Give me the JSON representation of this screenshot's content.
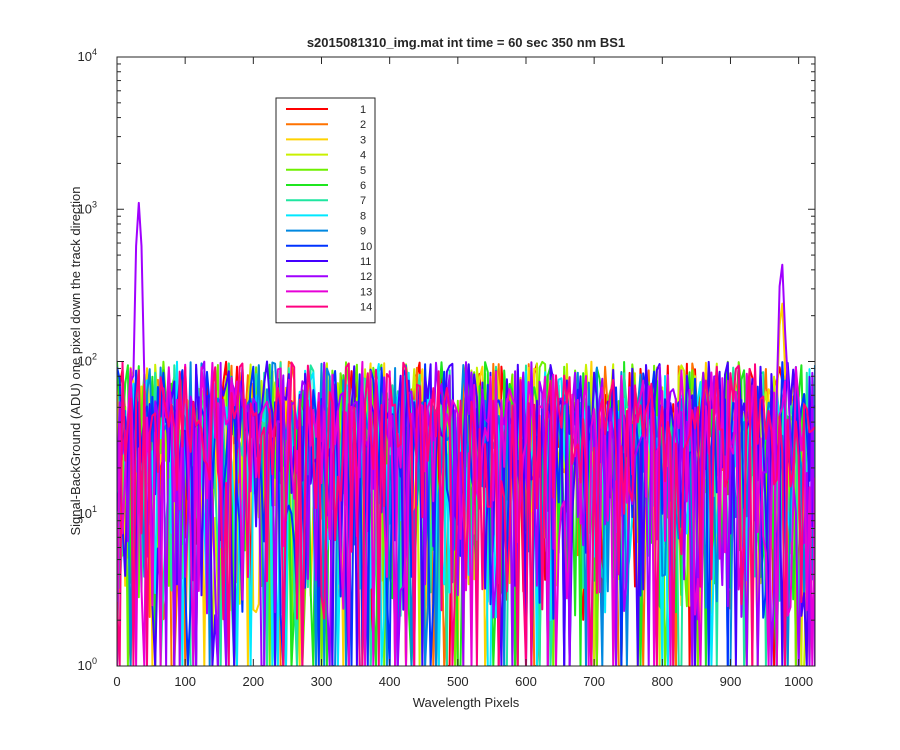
{
  "chart_data": {
    "type": "line",
    "title": "s2015081310_img.mat int time = 60 sec  350 nm BS1",
    "xlabel": "Wavelength Pixels",
    "ylabel": "Signal-BackGround (ADU) one pixel down the track direction",
    "xlim": [
      0,
      1024
    ],
    "ylim": [
      1,
      10000
    ],
    "yscale": "log",
    "grid": false,
    "legend_position": "top-left",
    "x_ticks": [
      0,
      100,
      200,
      300,
      400,
      500,
      600,
      700,
      800,
      900,
      1000
    ],
    "x_tick_labels": [
      "0",
      "100",
      "200",
      "300",
      "400",
      "500",
      "600",
      "700",
      "800",
      "900",
      "1000"
    ],
    "y_ticks": [
      1,
      10,
      100,
      1000,
      10000
    ],
    "y_tick_base": "10",
    "y_tick_exponents": [
      "0",
      "1",
      "2",
      "3",
      "4"
    ],
    "sample_step": 4,
    "noise_level_typical": 30,
    "noise_level_max": 100,
    "peaks": [
      {
        "x": 32,
        "y": 1100,
        "series": "12"
      },
      {
        "x": 975,
        "y": 450,
        "series": "12"
      },
      {
        "x": 975,
        "y": 250,
        "series": "3"
      }
    ],
    "series": [
      {
        "name": "1",
        "color": "#ff0000"
      },
      {
        "name": "2",
        "color": "#ff7200"
      },
      {
        "name": "3",
        "color": "#ffd200"
      },
      {
        "name": "4",
        "color": "#c9f000"
      },
      {
        "name": "5",
        "color": "#6ef000"
      },
      {
        "name": "6",
        "color": "#1fe61f"
      },
      {
        "name": "7",
        "color": "#1fe6a0"
      },
      {
        "name": "8",
        "color": "#00e8ff"
      },
      {
        "name": "9",
        "color": "#0088e0"
      },
      {
        "name": "10",
        "color": "#0033ff"
      },
      {
        "name": "11",
        "color": "#4400ff"
      },
      {
        "name": "12",
        "color": "#a000ff"
      },
      {
        "name": "13",
        "color": "#e600d8"
      },
      {
        "name": "14",
        "color": "#ff0080"
      }
    ]
  }
}
